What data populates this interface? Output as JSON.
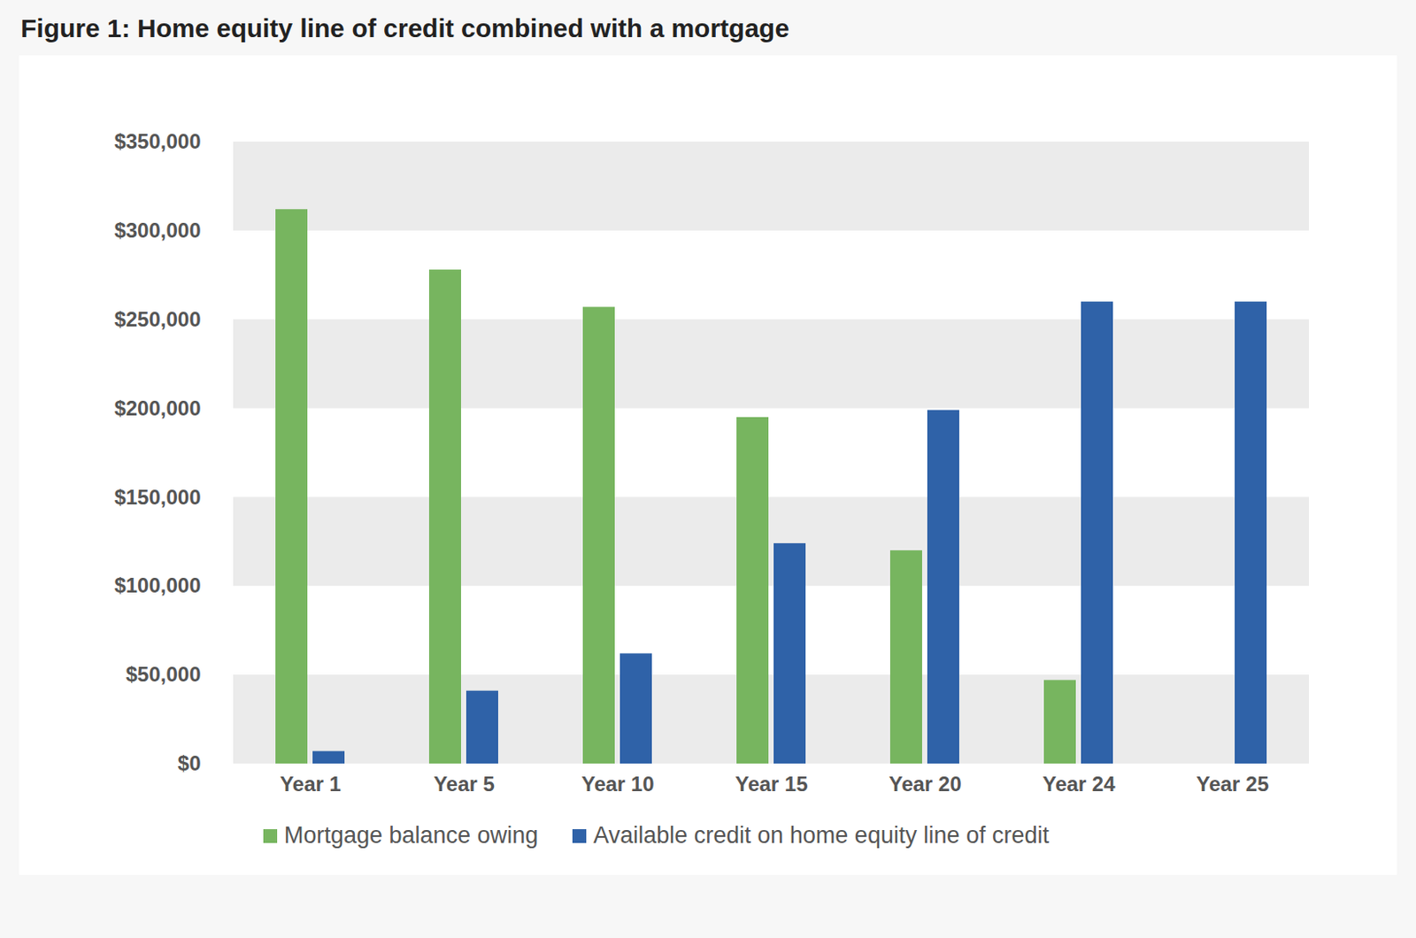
{
  "chart_data": {
    "type": "bar",
    "title": "Figure 1: Home equity line of credit combined with a mortgage",
    "categories": [
      "Year 1",
      "Year 5",
      "Year 10",
      "Year 15",
      "Year 20",
      "Year 24",
      "Year 25"
    ],
    "series": [
      {
        "name": "Mortgage balance owing",
        "color": "#77b55f",
        "values": [
          312000,
          278000,
          257000,
          195000,
          120000,
          47000,
          0
        ]
      },
      {
        "name": "Available credit on home equity line of credit",
        "color": "#2f62a8",
        "values": [
          7000,
          41000,
          62000,
          124000,
          199000,
          260000,
          260000
        ]
      }
    ],
    "ylim": [
      0,
      350000
    ],
    "yticks": [
      {
        "value": 0,
        "label": "$0"
      },
      {
        "value": 50000,
        "label": "$50,000"
      },
      {
        "value": 100000,
        "label": "$100,000"
      },
      {
        "value": 150000,
        "label": "$150,000"
      },
      {
        "value": 200000,
        "label": "$200,000"
      },
      {
        "value": 250000,
        "label": "$250,000"
      },
      {
        "value": 300000,
        "label": "$300,000"
      },
      {
        "value": 350000,
        "label": "$350,000"
      }
    ],
    "grid": true,
    "legend": "bottom"
  }
}
